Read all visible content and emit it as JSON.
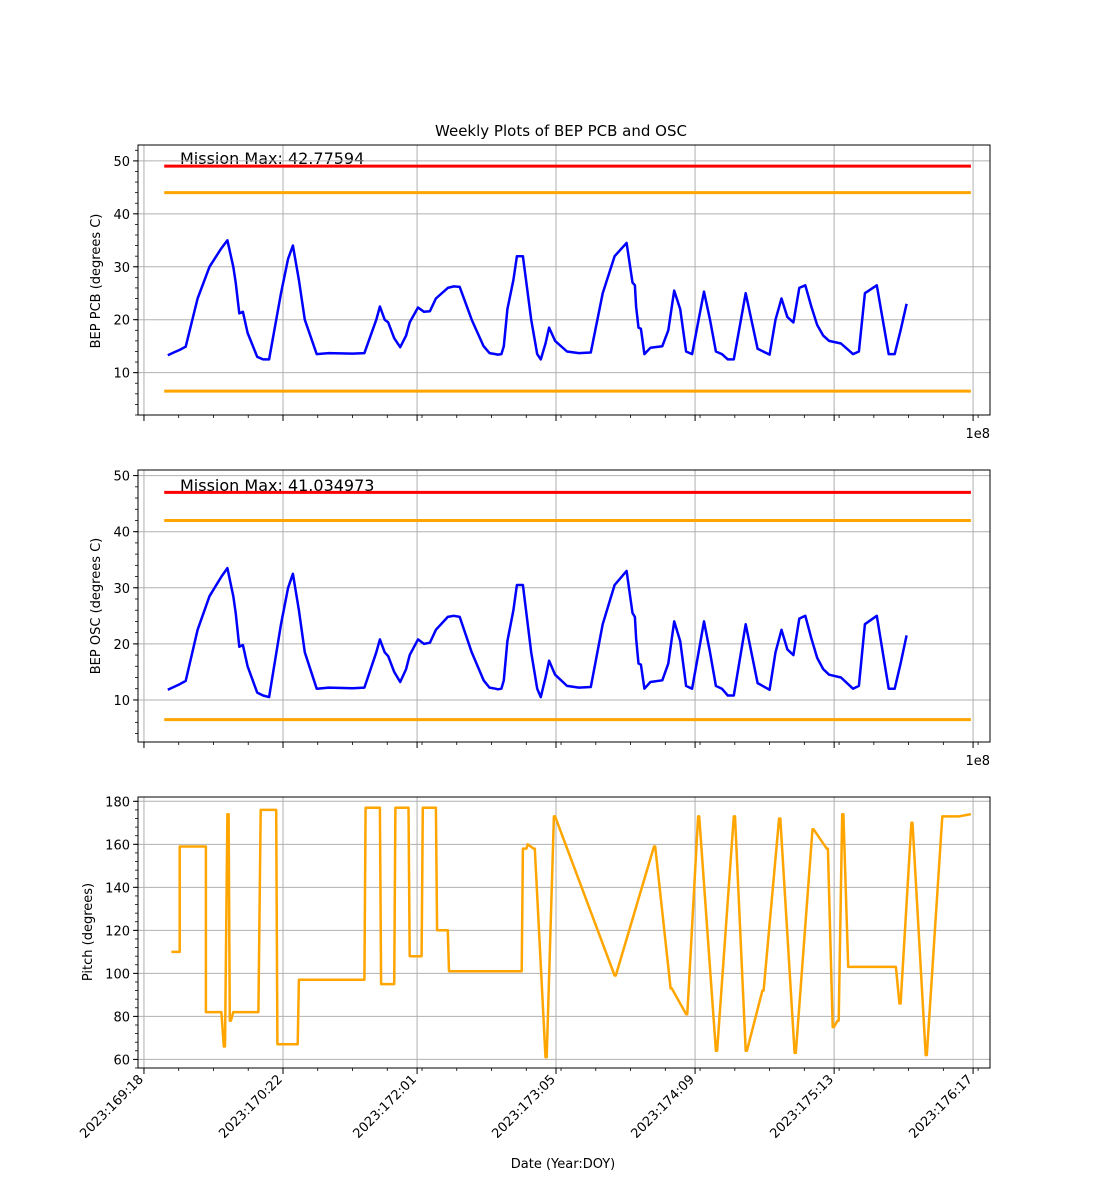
{
  "title": "Weekly Plots of BEP PCB and OSC",
  "xlabel": "Date (Year:DOY)",
  "offset_text": "1e8",
  "colors": {
    "data": "#0000ff",
    "limit_red": "#ff0000",
    "limit_orange": "#ffa500",
    "pitch": "#ffa500",
    "grid": "#b0b0b0"
  },
  "chart_data": [
    {
      "type": "line",
      "ylabel": "BEP PCB (degrees C)",
      "annotation": "Mission Max: 42.77594",
      "ylim": [
        2,
        53
      ],
      "yticks": [
        10,
        20,
        30,
        40,
        50
      ],
      "grid": true,
      "limits": [
        {
          "value": 49.0,
          "color": "#ff0000"
        },
        {
          "value": 44.0,
          "color": "#ffa500"
        },
        {
          "value": 6.5,
          "color": "#ffa500"
        }
      ],
      "series": [
        {
          "color": "#0000ff",
          "x": [
            169.95,
            170.0,
            170.05,
            170.1,
            170.2,
            170.3,
            170.4,
            170.45,
            170.5,
            170.52,
            170.55,
            170.58,
            170.62,
            170.7,
            170.75,
            170.8,
            170.9,
            170.96,
            171.0,
            171.05,
            171.1,
            171.2,
            171.3,
            171.5,
            171.6,
            171.7,
            171.73,
            171.77,
            171.8,
            171.85,
            171.9,
            171.95,
            171.98,
            172.05,
            172.1,
            172.15,
            172.2,
            172.3,
            172.35,
            172.4,
            172.5,
            172.6,
            172.65,
            172.7,
            172.72,
            172.75,
            172.77,
            172.8,
            172.85,
            172.88,
            172.93,
            173.0,
            173.05,
            173.08,
            173.12,
            173.15,
            173.2,
            173.3,
            173.4,
            173.5,
            173.6,
            173.7,
            173.8,
            173.85,
            173.87,
            173.88,
            173.9,
            173.92,
            173.95,
            174.0,
            174.1,
            174.15,
            174.2,
            174.25,
            174.3,
            174.35,
            174.4,
            174.45,
            174.5,
            174.55,
            174.6,
            174.65,
            174.7,
            174.8,
            174.9,
            175.0,
            175.05,
            175.1,
            175.15,
            175.2,
            175.25,
            175.3,
            175.35,
            175.4,
            175.45,
            175.5,
            175.6,
            175.7,
            175.75,
            175.8,
            175.9,
            176.0,
            176.05,
            176.1,
            176.15
          ],
          "y": [
            13.3,
            13.8,
            14.3,
            14.9,
            24.0,
            30.0,
            33.5,
            35.0,
            30.0,
            27.0,
            21.2,
            21.5,
            17.5,
            13.0,
            12.5,
            12.5,
            25.0,
            31.5,
            34.0,
            27.5,
            20.0,
            13.5,
            13.7,
            13.6,
            13.7,
            20.0,
            22.5,
            20.0,
            19.5,
            16.5,
            14.8,
            17.0,
            19.5,
            22.3,
            21.5,
            21.6,
            24.0,
            26.0,
            26.3,
            26.2,
            20.0,
            15.0,
            13.7,
            13.5,
            13.4,
            13.5,
            15.0,
            22.0,
            27.5,
            32.0,
            32.0,
            20.0,
            13.5,
            12.5,
            15.5,
            18.5,
            16.0,
            14.0,
            13.7,
            13.8,
            25.0,
            32.0,
            34.5,
            27.0,
            26.5,
            22.5,
            18.5,
            18.3,
            13.5,
            14.7,
            15.0,
            18.0,
            25.5,
            22.0,
            14.0,
            13.5,
            19.5,
            25.3,
            20.0,
            14.0,
            13.5,
            12.5,
            12.5,
            25.0,
            14.5,
            13.4,
            20.0,
            24.0,
            20.5,
            19.5,
            26.0,
            26.5,
            22.5,
            19.0,
            17.0,
            16.0,
            15.5,
            13.5,
            14.0,
            25.0,
            26.5,
            13.5,
            13.5,
            18.0,
            23.0
          ]
        }
      ]
    },
    {
      "type": "line",
      "ylabel": "BEP OSC (degrees C)",
      "annotation": "Mission Max: 41.034973",
      "ylim": [
        2.5,
        51
      ],
      "yticks": [
        10,
        20,
        30,
        40,
        50
      ],
      "grid": true,
      "limits": [
        {
          "value": 47.0,
          "color": "#ff0000"
        },
        {
          "value": 42.0,
          "color": "#ffa500"
        },
        {
          "value": 6.5,
          "color": "#ffa500"
        }
      ],
      "series": [
        {
          "color": "#0000ff",
          "x": [
            169.95,
            170.0,
            170.05,
            170.1,
            170.2,
            170.3,
            170.4,
            170.45,
            170.5,
            170.52,
            170.55,
            170.58,
            170.62,
            170.7,
            170.75,
            170.8,
            170.9,
            170.96,
            171.0,
            171.05,
            171.1,
            171.2,
            171.3,
            171.5,
            171.6,
            171.7,
            171.73,
            171.77,
            171.8,
            171.85,
            171.9,
            171.95,
            171.98,
            172.05,
            172.1,
            172.15,
            172.2,
            172.3,
            172.35,
            172.4,
            172.5,
            172.6,
            172.65,
            172.7,
            172.72,
            172.75,
            172.77,
            172.8,
            172.85,
            172.88,
            172.93,
            173.0,
            173.05,
            173.08,
            173.12,
            173.15,
            173.2,
            173.3,
            173.4,
            173.5,
            173.6,
            173.7,
            173.8,
            173.85,
            173.87,
            173.88,
            173.9,
            173.92,
            173.95,
            174.0,
            174.1,
            174.15,
            174.2,
            174.25,
            174.3,
            174.35,
            174.4,
            174.45,
            174.5,
            174.55,
            174.6,
            174.65,
            174.7,
            174.8,
            174.9,
            175.0,
            175.05,
            175.1,
            175.15,
            175.2,
            175.25,
            175.3,
            175.35,
            175.4,
            175.45,
            175.5,
            175.6,
            175.7,
            175.75,
            175.8,
            175.9,
            176.0,
            176.05,
            176.1,
            176.15
          ],
          "y": [
            11.8,
            12.3,
            12.8,
            13.4,
            22.5,
            28.5,
            32.0,
            33.5,
            28.5,
            25.5,
            19.5,
            19.8,
            16.0,
            11.3,
            10.8,
            10.5,
            23.5,
            30.0,
            32.5,
            26.0,
            18.5,
            12.0,
            12.2,
            12.1,
            12.2,
            18.5,
            20.8,
            18.5,
            17.8,
            15.0,
            13.2,
            15.5,
            18.0,
            20.8,
            20.0,
            20.2,
            22.5,
            24.8,
            25.0,
            24.8,
            18.5,
            13.5,
            12.2,
            12.0,
            11.9,
            12.0,
            13.5,
            20.5,
            26.0,
            30.5,
            30.5,
            18.5,
            12.0,
            10.5,
            14.0,
            17.0,
            14.5,
            12.5,
            12.2,
            12.3,
            23.5,
            30.5,
            33.0,
            25.5,
            24.8,
            21.0,
            16.5,
            16.3,
            12.0,
            13.2,
            13.5,
            16.5,
            24.0,
            20.5,
            12.5,
            12.0,
            18.0,
            24.0,
            18.5,
            12.5,
            12.0,
            10.8,
            10.8,
            23.5,
            13.0,
            11.8,
            18.5,
            22.5,
            19.0,
            18.0,
            24.5,
            25.0,
            21.0,
            17.5,
            15.5,
            14.5,
            14.0,
            12.0,
            12.5,
            23.5,
            25.0,
            12.0,
            12.0,
            16.5,
            21.5
          ]
        }
      ]
    },
    {
      "type": "line",
      "ylabel": "Pitch (degrees)",
      "xlabel": "Date (Year:DOY)",
      "ylim": [
        56,
        182
      ],
      "yticks": [
        60,
        80,
        100,
        120,
        140,
        160,
        180
      ],
      "xtick_labels": [
        "2023:169:18",
        "2023:170:22",
        "2023:172:01",
        "2023:173:05",
        "2023:174:09",
        "2023:175:13",
        "2023:176:17"
      ],
      "grid": true,
      "series": [
        {
          "color": "#ffa500",
          "x": [
            169.98,
            170.05,
            170.05,
            170.27,
            170.27,
            170.4,
            170.42,
            170.43,
            170.45,
            170.46,
            170.47,
            170.48,
            170.5,
            170.51,
            170.71,
            170.73,
            170.86,
            170.87,
            171.04,
            171.05,
            171.2,
            171.21,
            171.6,
            171.61,
            171.73,
            171.74,
            171.85,
            171.86,
            171.97,
            171.98,
            172.08,
            172.09,
            172.2,
            172.21,
            172.27,
            172.28,
            172.3,
            172.31,
            172.65,
            172.66,
            172.92,
            172.93,
            172.96,
            172.97,
            173.02,
            173.03,
            173.12,
            173.13,
            173.19,
            173.2,
            173.7,
            173.71,
            174.03,
            174.04,
            174.17,
            174.18,
            174.3,
            174.31,
            174.4,
            174.41,
            174.55,
            174.56,
            174.7,
            174.71,
            174.8,
            174.81,
            174.94,
            174.95,
            175.08,
            175.09,
            175.21,
            175.22,
            175.36,
            175.37,
            175.48,
            175.49,
            175.53,
            175.54,
            175.57,
            175.58,
            175.61,
            175.62,
            175.66,
            175.67,
            175.72,
            175.73,
            175.76,
            175.77,
            176.05,
            176.06,
            176.09,
            176.1,
            176.19,
            176.2,
            176.31,
            176.32,
            176.45,
            176.46,
            176.58,
            176.59,
            176.69
          ],
          "y": [
            110,
            110,
            159,
            159,
            82,
            82,
            66,
            66,
            174,
            174,
            78,
            78,
            82,
            82,
            82,
            176,
            176,
            67,
            67,
            97,
            97,
            97,
            97,
            177,
            177,
            95,
            95,
            177,
            177,
            108,
            108,
            177,
            177,
            120,
            120,
            120,
            120,
            101,
            101,
            101,
            101,
            158,
            158,
            160,
            158,
            158,
            61,
            61,
            173,
            173,
            99,
            99,
            159,
            159,
            93,
            93,
            81,
            81,
            173,
            173,
            64,
            64,
            173,
            173,
            64,
            64,
            92,
            92,
            172,
            172,
            63,
            63,
            167,
            167,
            158,
            158,
            75,
            75,
            78,
            78,
            174,
            174,
            103,
            103,
            103,
            103,
            103,
            103,
            103,
            103,
            86,
            86,
            170,
            170,
            62,
            62,
            173,
            173,
            173,
            173,
            174
          ]
        }
      ]
    }
  ]
}
